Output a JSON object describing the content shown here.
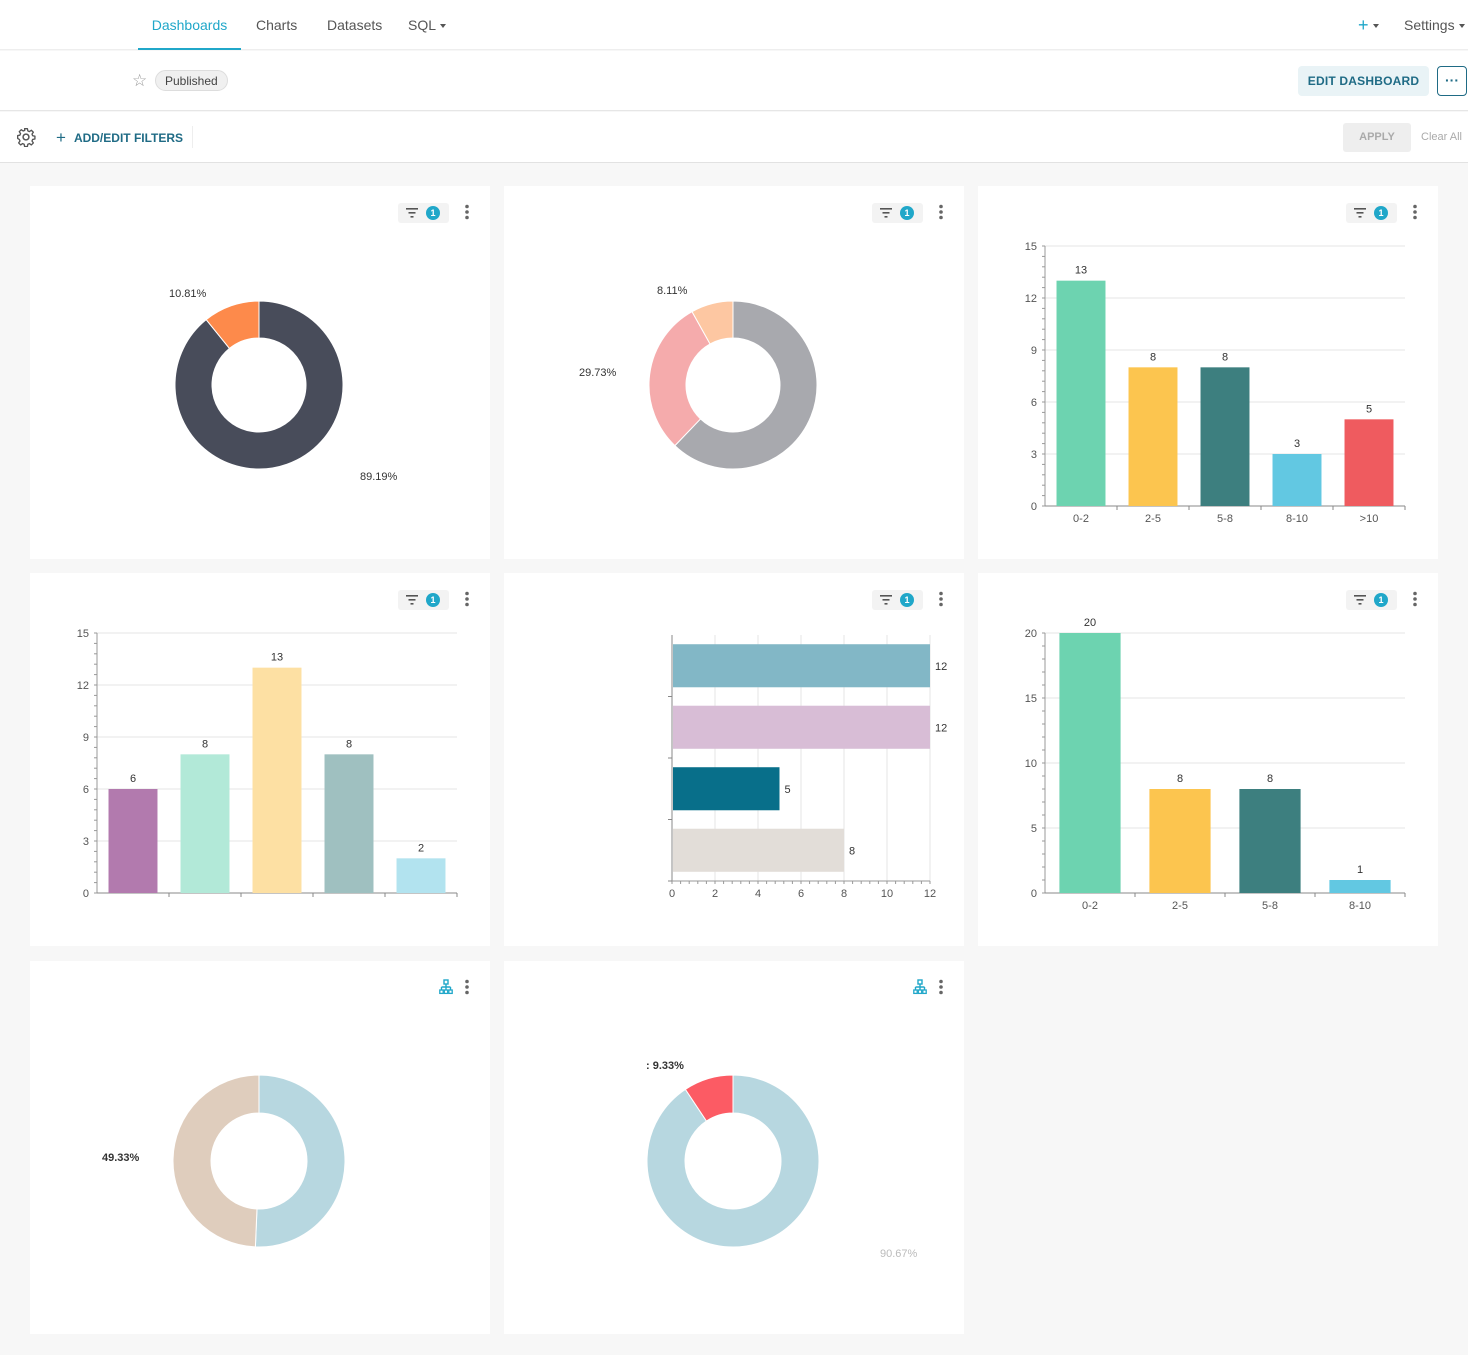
{
  "nav": {
    "tabs": [
      {
        "label": "Dashboards"
      },
      {
        "label": "Charts"
      },
      {
        "label": "Datasets"
      },
      {
        "label": "SQL"
      }
    ],
    "plus_label": "+",
    "settings_label": "Settings"
  },
  "header": {
    "badge": "Published",
    "edit_label": "EDIT DASHBOARD",
    "more_label": "···"
  },
  "filterbar": {
    "add_label": "ADD/EDIT FILTERS",
    "apply_label": "APPLY",
    "clear_label": "Clear All"
  },
  "colors": {
    "accent": "#20a7c9",
    "primary_dark": "#1f6b85"
  },
  "icons": [
    "star-icon",
    "gear-icon",
    "plus-icon",
    "filter-icon",
    "kebab-icon",
    "tree-icon",
    "chevron-down-icon"
  ],
  "cards": [
    {
      "filter_count": "1"
    },
    {
      "filter_count": "1"
    },
    {
      "filter_count": "1"
    },
    {
      "filter_count": "1"
    },
    {
      "filter_count": "1"
    },
    {
      "filter_count": "1"
    },
    {},
    {}
  ],
  "chart_data": [
    {
      "type": "pie",
      "donut": true,
      "slices": [
        {
          "value": 89.19,
          "label": "89.19%",
          "color": "#484c5a"
        },
        {
          "value": 10.81,
          "label": "10.81%",
          "color": "#fd8a4b"
        }
      ]
    },
    {
      "type": "pie",
      "donut": true,
      "slices": [
        {
          "value": 62.16,
          "label": "",
          "color": "#a8a9ae"
        },
        {
          "value": 29.73,
          "label": "29.73%",
          "color": "#f5abac"
        },
        {
          "value": 8.11,
          "label": "8.11%",
          "color": "#fdc7a2"
        }
      ]
    },
    {
      "type": "bar",
      "categories": [
        "0-2",
        "2-5",
        "5-8",
        "8-10",
        ">10"
      ],
      "values": [
        13,
        8,
        8,
        3,
        5
      ],
      "colors": [
        "#6dd3b0",
        "#fcc54f",
        "#3d7f7f",
        "#62c8e2",
        "#ef5b5f"
      ],
      "ylim": [
        0,
        15
      ],
      "yticks": [
        0,
        3,
        6,
        9,
        12,
        15
      ]
    },
    {
      "type": "bar",
      "categories": [
        "",
        "",
        "",
        "",
        ""
      ],
      "values": [
        6,
        8,
        13,
        8,
        2
      ],
      "colors": [
        "#b27aae",
        "#b2e9d8",
        "#fde0a3",
        "#9fc0c0",
        "#b2e3ef"
      ],
      "ylim": [
        0,
        15
      ],
      "yticks": [
        0,
        3,
        6,
        9,
        12,
        15
      ]
    },
    {
      "type": "bar",
      "orientation": "horizontal",
      "values": [
        12,
        12,
        5,
        8
      ],
      "colors": [
        "#82b7c6",
        "#d8bdd6",
        "#086f8a",
        "#e2ddd8"
      ],
      "xlim": [
        0,
        12
      ],
      "xticks": [
        0,
        2,
        4,
        6,
        8,
        10,
        12
      ]
    },
    {
      "type": "bar",
      "categories": [
        "0-2",
        "2-5",
        "5-8",
        "8-10"
      ],
      "values": [
        20,
        8,
        8,
        1
      ],
      "colors": [
        "#6dd3b0",
        "#fcc54f",
        "#3d7f7f",
        "#62c8e2"
      ],
      "ylim": [
        0,
        20
      ],
      "yticks": [
        0,
        5,
        10,
        15,
        20
      ]
    },
    {
      "type": "pie",
      "donut": true,
      "slices": [
        {
          "value": 50.67,
          "label": "",
          "color": "#b7d7e0"
        },
        {
          "value": 49.33,
          "label": "49.33%",
          "color": "#dfcdbd"
        }
      ]
    },
    {
      "type": "pie",
      "donut": true,
      "slices": [
        {
          "value": 90.67,
          "label": "90.67%",
          "color": "#b7d7e0"
        },
        {
          "value": 9.33,
          "label": ": 9.33%",
          "color": "#fc5b64"
        }
      ]
    }
  ]
}
